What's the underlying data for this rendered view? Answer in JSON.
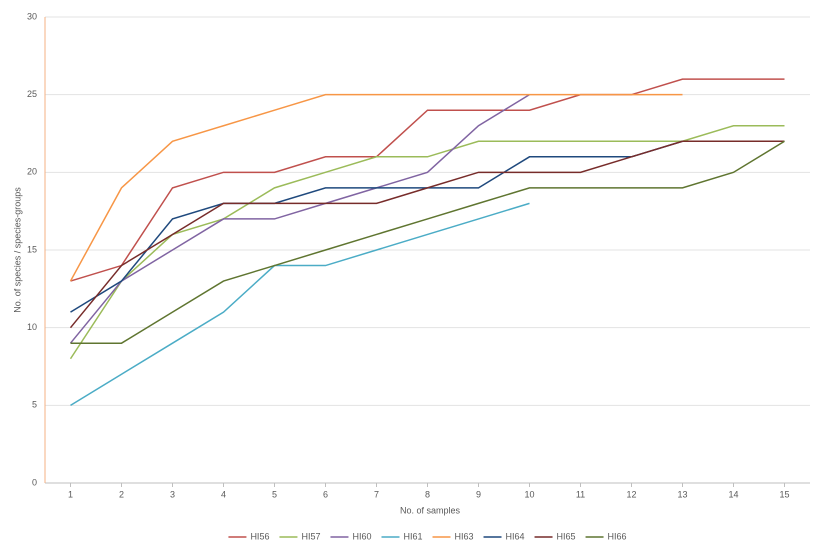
{
  "chart_data": {
    "type": "line",
    "x_label": "No. of samples",
    "y_label": "No. of species / species-groups",
    "x": [
      1,
      2,
      3,
      4,
      5,
      6,
      7,
      8,
      9,
      10,
      11,
      12,
      13,
      14,
      15
    ],
    "xlim": [
      0.5,
      15.5
    ],
    "xticks": [
      1,
      2,
      3,
      4,
      5,
      6,
      7,
      8,
      9,
      10,
      11,
      12,
      13,
      14,
      15
    ],
    "ylim": [
      0,
      30
    ],
    "yticks": [
      0,
      5,
      10,
      15,
      20,
      25,
      30
    ],
    "grid": true,
    "legend": "bottom",
    "series": [
      {
        "name": "HI56",
        "color": "#c0504d",
        "values": [
          13,
          14,
          19,
          20,
          20,
          21,
          21,
          24,
          24,
          24,
          25,
          25,
          26,
          26,
          26
        ]
      },
      {
        "name": "HI57",
        "color": "#9bbb59",
        "values": [
          8,
          13,
          16,
          17,
          19,
          20,
          21,
          21,
          22,
          22,
          22,
          22,
          22,
          23,
          23
        ]
      },
      {
        "name": "HI60",
        "color": "#8064a2",
        "values": [
          9,
          13,
          15,
          17,
          17,
          18,
          19,
          20,
          23,
          25,
          null,
          null,
          null,
          null,
          null
        ]
      },
      {
        "name": "HI61",
        "color": "#4bacc6",
        "values": [
          5,
          7,
          9,
          11,
          14,
          14,
          15,
          16,
          17,
          18,
          null,
          null,
          null,
          null,
          null
        ]
      },
      {
        "name": "HI63",
        "color": "#f79646",
        "values": [
          13,
          19,
          22,
          23,
          24,
          25,
          25,
          25,
          25,
          25,
          25,
          25,
          25,
          null,
          null
        ]
      },
      {
        "name": "HI64",
        "color": "#1f497d",
        "values": [
          11,
          13,
          17,
          18,
          18,
          19,
          19,
          19,
          19,
          21,
          21,
          21,
          22,
          22,
          22
        ]
      },
      {
        "name": "HI65",
        "color": "#772c2a",
        "values": [
          10,
          14,
          16,
          18,
          18,
          18,
          18,
          19,
          20,
          20,
          20,
          21,
          22,
          22,
          22
        ]
      },
      {
        "name": "HI66",
        "color": "#5f7530",
        "values": [
          9,
          9,
          11,
          13,
          14,
          15,
          16,
          17,
          18,
          19,
          19,
          19,
          19,
          20,
          22
        ]
      }
    ]
  }
}
